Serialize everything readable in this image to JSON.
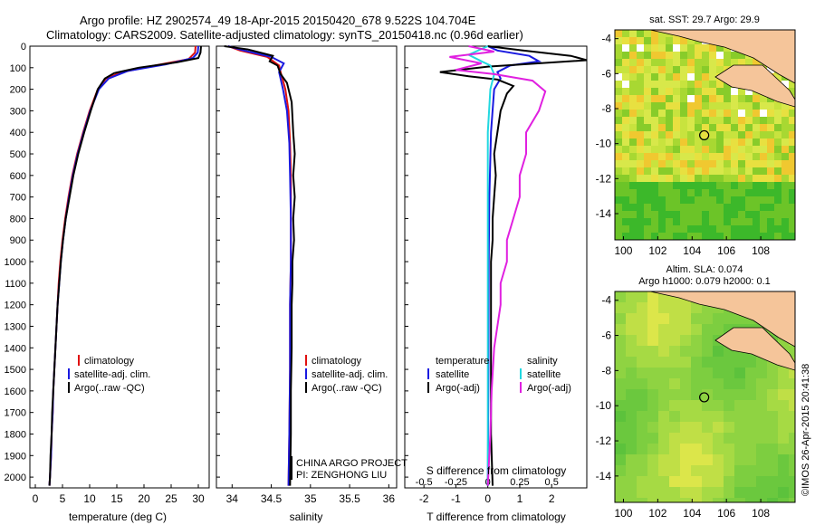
{
  "header": {
    "line1": "Argo profile: HZ 2902574_49 18-Apr-2015 20150420_678 9.522S 104.704E",
    "line2": "Climatology: CARS2009. Satellite-adjusted climatology: synTS_20150418.nc (0.96d earlier)"
  },
  "side_label": "©IMOS 26-Apr-2015 20:41:38",
  "colors": {
    "red": "#e01010",
    "blue": "#1a1ae0",
    "black": "#000000",
    "cyan": "#22d8e0",
    "magenta": "#e020e0",
    "land": "#f5c59a"
  },
  "chart_data": [
    {
      "type": "line",
      "xlabel": "temperature (deg C)",
      "ylabel": "",
      "xlim": [
        -1,
        32
      ],
      "ylim": [
        2050,
        0
      ],
      "xticks": [
        "0",
        "5",
        "10",
        "15",
        "20",
        "25",
        "30"
      ],
      "yticks": [
        "0",
        "100",
        "200",
        "300",
        "400",
        "500",
        "600",
        "700",
        "800",
        "900",
        "1000",
        "1100",
        "1200",
        "1300",
        "1400",
        "1500",
        "1600",
        "1700",
        "1800",
        "1900",
        "2000"
      ],
      "legend": [
        "climatology",
        "satellite-adj. clim.",
        "Argo(..raw -QC)"
      ],
      "series": [
        {
          "name": "climatology",
          "color": "red",
          "points": [
            [
              29.5,
              0
            ],
            [
              29.4,
              30
            ],
            [
              28.2,
              60
            ],
            [
              22,
              90
            ],
            [
              16,
              120
            ],
            [
              13,
              150
            ],
            [
              11.5,
              200
            ],
            [
              10,
              300
            ],
            [
              8.8,
              400
            ],
            [
              7.7,
              500
            ],
            [
              6.8,
              600
            ],
            [
              6.1,
              700
            ],
            [
              5.5,
              800
            ],
            [
              5,
              900
            ],
            [
              4.6,
              1000
            ],
            [
              4.3,
              1100
            ],
            [
              4.1,
              1200
            ],
            [
              3.9,
              1300
            ],
            [
              3.7,
              1400
            ],
            [
              3.5,
              1500
            ],
            [
              3.3,
              1600
            ],
            [
              3.2,
              1700
            ],
            [
              3,
              1800
            ],
            [
              2.9,
              1900
            ],
            [
              2.7,
              2000
            ],
            [
              2.6,
              2040
            ]
          ]
        },
        {
          "name": "satellite-adj. clim.",
          "color": "blue",
          "points": [
            [
              30,
              0
            ],
            [
              29.9,
              30
            ],
            [
              29,
              55
            ],
            [
              24,
              85
            ],
            [
              17,
              115
            ],
            [
              13.5,
              150
            ],
            [
              11.7,
              200
            ],
            [
              10.1,
              300
            ],
            [
              8.9,
              400
            ],
            [
              7.8,
              500
            ],
            [
              6.9,
              600
            ],
            [
              6.2,
              700
            ],
            [
              5.6,
              800
            ],
            [
              5.1,
              900
            ],
            [
              4.7,
              1000
            ],
            [
              4.4,
              1100
            ],
            [
              4.1,
              1200
            ],
            [
              3.9,
              1300
            ],
            [
              3.7,
              1400
            ],
            [
              3.5,
              1500
            ],
            [
              3.3,
              1600
            ],
            [
              3.2,
              1700
            ],
            [
              3,
              1800
            ],
            [
              2.9,
              1900
            ],
            [
              2.7,
              2000
            ],
            [
              2.6,
              2040
            ]
          ]
        },
        {
          "name": "Argo(..raw -QC)",
          "color": "black",
          "points": [
            [
              30.5,
              0
            ],
            [
              30.4,
              30
            ],
            [
              30,
              55
            ],
            [
              26,
              75
            ],
            [
              19,
              100
            ],
            [
              14.5,
              125
            ],
            [
              12.8,
              150
            ],
            [
              11.5,
              200
            ],
            [
              10.2,
              300
            ],
            [
              9,
              400
            ],
            [
              7.9,
              500
            ],
            [
              7,
              600
            ],
            [
              6.3,
              700
            ],
            [
              5.6,
              800
            ],
            [
              5.1,
              900
            ],
            [
              4.7,
              1000
            ],
            [
              4.4,
              1100
            ],
            [
              4.1,
              1200
            ],
            [
              3.9,
              1300
            ],
            [
              3.7,
              1400
            ],
            [
              3.5,
              1500
            ],
            [
              3.3,
              1600
            ],
            [
              3.1,
              1700
            ],
            [
              3,
              1800
            ],
            [
              2.8,
              1900
            ],
            [
              2.7,
              2000
            ],
            [
              2.6,
              2040
            ]
          ]
        }
      ]
    },
    {
      "type": "line",
      "xlabel": "salinity",
      "xlim": [
        33.8,
        36.1
      ],
      "ylim": [
        2050,
        0
      ],
      "xticks": [
        "34",
        "34.5",
        "35",
        "35.5",
        "36"
      ],
      "legend": [
        "climatology",
        "satellite-adj. clim.",
        "Argo(..raw -QC)"
      ],
      "annotation": [
        "CHINA ARGO PROJECT",
        "PI: ZENGHONG LIU"
      ],
      "series": [
        {
          "name": "climatology",
          "color": "red",
          "points": [
            [
              33.95,
              0
            ],
            [
              34.1,
              20
            ],
            [
              34.45,
              50
            ],
            [
              34.6,
              90
            ],
            [
              34.62,
              120
            ],
            [
              34.68,
              200
            ],
            [
              34.72,
              300
            ],
            [
              34.74,
              450
            ],
            [
              34.75,
              600
            ],
            [
              34.75,
              800
            ],
            [
              34.75,
              1000
            ],
            [
              34.74,
              1200
            ],
            [
              34.74,
              1500
            ],
            [
              34.73,
              1800
            ],
            [
              34.72,
              2040
            ]
          ]
        },
        {
          "name": "satellite-adj. clim.",
          "color": "blue",
          "points": [
            [
              33.95,
              0
            ],
            [
              34.15,
              20
            ],
            [
              34.5,
              50
            ],
            [
              34.66,
              80
            ],
            [
              34.6,
              120
            ],
            [
              34.65,
              200
            ],
            [
              34.7,
              300
            ],
            [
              34.73,
              450
            ],
            [
              34.74,
              600
            ],
            [
              34.75,
              800
            ],
            [
              34.75,
              1000
            ],
            [
              34.74,
              1200
            ],
            [
              34.74,
              1500
            ],
            [
              34.73,
              1800
            ],
            [
              34.72,
              2040
            ]
          ]
        },
        {
          "name": "Argo(..raw -QC)",
          "color": "black",
          "points": [
            [
              33.9,
              0
            ],
            [
              34.2,
              15
            ],
            [
              34.52,
              45
            ],
            [
              34.48,
              70
            ],
            [
              34.58,
              90
            ],
            [
              34.62,
              130
            ],
            [
              34.7,
              170
            ],
            [
              34.76,
              260
            ],
            [
              34.78,
              400
            ],
            [
              34.8,
              500
            ],
            [
              34.78,
              600
            ],
            [
              34.8,
              700
            ],
            [
              34.78,
              800
            ],
            [
              34.79,
              900
            ],
            [
              34.77,
              1000
            ],
            [
              34.77,
              1100
            ],
            [
              34.76,
              1200
            ],
            [
              34.76,
              1400
            ],
            [
              34.75,
              1600
            ],
            [
              34.75,
              1800
            ],
            [
              34.74,
              2040
            ]
          ]
        }
      ]
    },
    {
      "type": "line",
      "xlabel": "T difference from climatology",
      "xlabel2": "S difference from climatology",
      "xlim": [
        -2.6,
        3.1
      ],
      "ylim": [
        2050,
        0
      ],
      "xticks": [
        "-2",
        "-1",
        "0",
        "1",
        "2"
      ],
      "xticks2": [
        "-0.5",
        "-0.25",
        "0",
        "0.25",
        "0.5"
      ],
      "legend_temperature_title": "temperature",
      "legend_salinity_title": "salinity",
      "legend_temperature": [
        "satellite",
        "Argo(-adj)"
      ],
      "legend_salinity": [
        "satellite",
        "Argo(-adj)"
      ],
      "series": [
        {
          "name": "T satellite",
          "color": "blue",
          "points": [
            [
              0,
              0
            ],
            [
              0.3,
              20
            ],
            [
              1.3,
              45
            ],
            [
              1.6,
              70
            ],
            [
              0.7,
              90
            ],
            [
              0.3,
              120
            ],
            [
              0.4,
              150
            ],
            [
              0.2,
              200
            ],
            [
              0.1,
              400
            ],
            [
              0.05,
              700
            ],
            [
              0.03,
              1000
            ],
            [
              0.02,
              1500
            ],
            [
              0,
              2040
            ]
          ]
        },
        {
          "name": "T Argo(-adj)",
          "color": "black",
          "points": [
            [
              0,
              0
            ],
            [
              1.1,
              20
            ],
            [
              2.6,
              45
            ],
            [
              3.1,
              65
            ],
            [
              0,
              95
            ],
            [
              -1.5,
              120
            ],
            [
              -0.6,
              140
            ],
            [
              0.3,
              155
            ],
            [
              0.8,
              185
            ],
            [
              0.6,
              220
            ],
            [
              0.4,
              300
            ],
            [
              0.3,
              400
            ],
            [
              0.2,
              500
            ],
            [
              0.25,
              600
            ],
            [
              0.2,
              700
            ],
            [
              0.15,
              800
            ],
            [
              0.15,
              900
            ],
            [
              0.1,
              1000
            ],
            [
              0.1,
              1200
            ],
            [
              0.1,
              1500
            ],
            [
              0.1,
              1800
            ],
            [
              0.15,
              2040
            ]
          ]
        },
        {
          "name": "S satellite",
          "color": "cyan",
          "points": [
            [
              0,
              0
            ],
            [
              -0.15,
              40
            ],
            [
              -0.05,
              70
            ],
            [
              0.02,
              90
            ],
            [
              0.05,
              130
            ],
            [
              0.02,
              200
            ],
            [
              0,
              400
            ],
            [
              0,
              700
            ],
            [
              0,
              1000
            ],
            [
              0,
              1500
            ],
            [
              0,
              2040
            ]
          ]
        },
        {
          "name": "S Argo(-adj)",
          "color": "magenta",
          "points": [
            [
              -0.15,
              0
            ],
            [
              0.05,
              25
            ],
            [
              -0.3,
              50
            ],
            [
              -0.05,
              80
            ],
            [
              -0.25,
              110
            ],
            [
              0.05,
              130
            ],
            [
              0.35,
              160
            ],
            [
              0.45,
              210
            ],
            [
              0.4,
              300
            ],
            [
              0.3,
              400
            ],
            [
              0.3,
              500
            ],
            [
              0.25,
              600
            ],
            [
              0.25,
              700
            ],
            [
              0.2,
              800
            ],
            [
              0.15,
              900
            ],
            [
              0.15,
              1000
            ],
            [
              0.1,
              1100
            ],
            [
              0.1,
              1200
            ],
            [
              0.05,
              1400
            ],
            [
              0.03,
              1600
            ],
            [
              0.02,
              1800
            ],
            [
              0,
              2040
            ]
          ]
        }
      ]
    },
    {
      "type": "heatmap",
      "title": "sat. SST: 29.7 Argo: 29.9",
      "xlim": [
        99.5,
        110
      ],
      "ylim": [
        -15.5,
        -3.5
      ],
      "xticks": [
        "100",
        "102",
        "104",
        "106",
        "108"
      ],
      "yticks": [
        "-4",
        "-6",
        "-8",
        "-10",
        "-12",
        "-14"
      ],
      "marker": [
        104.704,
        -9.522
      ]
    },
    {
      "type": "heatmap",
      "title_line1": "Altim. SLA: 0.074",
      "title_line2": "Argo h1000: 0.079 h2000: 0.1",
      "xlim": [
        99.5,
        110
      ],
      "ylim": [
        -15.5,
        -3.5
      ],
      "xticks": [
        "100",
        "102",
        "104",
        "106",
        "108"
      ],
      "yticks": [
        "-4",
        "-6",
        "-8",
        "-10",
        "-12",
        "-14"
      ],
      "marker": [
        104.704,
        -9.522
      ]
    }
  ]
}
